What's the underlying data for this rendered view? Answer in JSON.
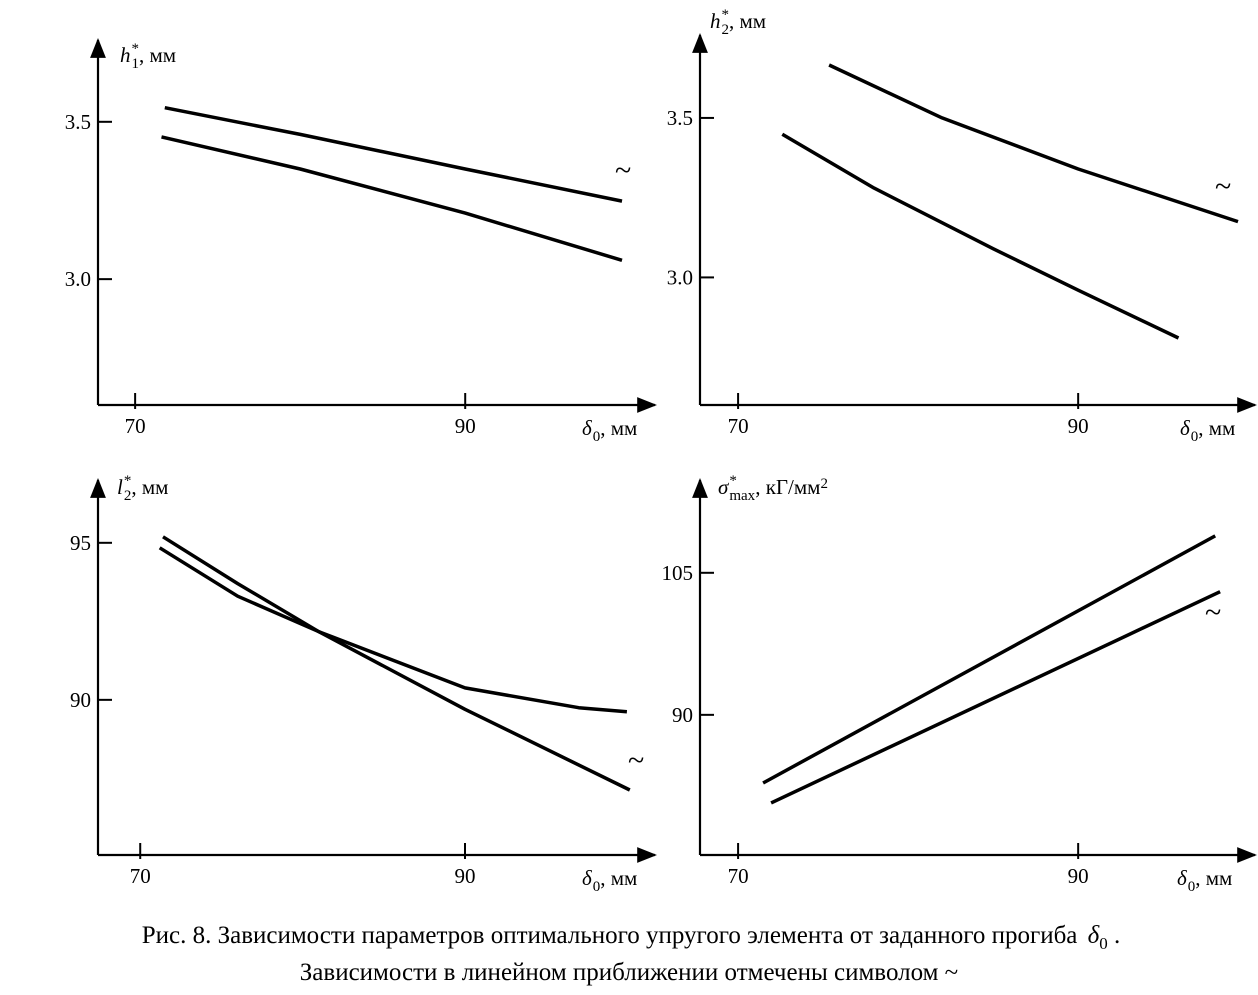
{
  "chart_data": [
    {
      "type": "line",
      "y_label": {
        "symbol": "h",
        "sup": "*",
        "sub": "1",
        "unit": ", мм"
      },
      "x_label": {
        "symbol": "δ",
        "sub": "0",
        "unit": ", мм"
      },
      "xlim": [
        67.75,
        101.5
      ],
      "xticks": [
        70,
        90
      ],
      "ylim": [
        2.6,
        3.76
      ],
      "yticks": [
        3.5,
        {
          "value": 3,
          "label": "3.0"
        }
      ],
      "annotation": "~",
      "series": [
        {
          "color": "#000000",
          "x": [
            71.8,
            80,
            90,
            99.5
          ],
          "values": [
            3.545,
            3.46,
            3.35,
            3.248
          ]
        },
        {
          "color": "#000000",
          "x": [
            71.6,
            80,
            90,
            99.5
          ],
          "values": [
            3.452,
            3.35,
            3.21,
            3.06
          ]
        }
      ]
    },
    {
      "type": "line",
      "y_label": {
        "symbol": "h",
        "sup": "*",
        "sub": "2",
        "unit": ", мм"
      },
      "x_label": {
        "symbol": "δ",
        "sub": "0",
        "unit": ", мм"
      },
      "xlim": [
        67.76,
        100.4
      ],
      "xticks": [
        70,
        90
      ],
      "ylim": [
        2.6,
        3.76
      ],
      "yticks": [
        3.5,
        {
          "value": 3,
          "label": "3.0"
        }
      ],
      "annotation": "~",
      "series": [
        {
          "color": "#000000",
          "x": [
            75.35,
            82,
            90,
            99.4
          ],
          "values": [
            3.666,
            3.5,
            3.34,
            3.175
          ]
        },
        {
          "color": "#000000",
          "x": [
            72.6,
            78,
            85,
            90,
            95.9
          ],
          "values": [
            3.449,
            3.28,
            3.09,
            2.96,
            2.81
          ]
        }
      ]
    },
    {
      "type": "line",
      "y_label": {
        "symbol": "l",
        "sup": "*",
        "sub": "2",
        "unit": ", мм"
      },
      "x_label": {
        "symbol": "δ",
        "sub": "0",
        "unit": ", мм"
      },
      "xlim": [
        67.4,
        101.7
      ],
      "xticks": [
        70,
        90
      ],
      "ylim": [
        85.06,
        97
      ],
      "yticks": [
        95,
        90
      ],
      "annotation": "~",
      "series": [
        {
          "color": "#000000",
          "x": [
            71.4,
            76,
            81,
            90,
            100.15
          ],
          "values": [
            95.19,
            93.7,
            92.17,
            89.7,
            87.13
          ]
        },
        {
          "color": "#000000",
          "x": [
            71.2,
            76,
            81,
            90,
            97,
            99.97
          ],
          "values": [
            94.84,
            93.3,
            92.17,
            90.38,
            89.75,
            89.62
          ]
        }
      ]
    },
    {
      "type": "line",
      "y_label": {
        "symbol": "σ",
        "sup": "*",
        "sub": "max",
        "unit": ", кГ/мм",
        "unit_sup": "2"
      },
      "x_label": {
        "symbol": "δ",
        "sub": "0",
        "unit": ", мм"
      },
      "xlim": [
        67.76,
        100.4
      ],
      "xticks": [
        70,
        90
      ],
      "ylim": [
        75.2,
        114.8
      ],
      "yticks": [
        105,
        90
      ],
      "annotation": "~",
      "series": [
        {
          "color": "#000000",
          "x": [
            71.47,
            98.06
          ],
          "values": [
            82.8,
            108.9
          ]
        },
        {
          "color": "#000000",
          "x": [
            71.94,
            98.35
          ],
          "values": [
            80.7,
            103
          ]
        }
      ]
    }
  ],
  "caption": {
    "line1": "Рис. 8. Зависимости параметров оптимального упругого элемента от заданного прогиба ",
    "symbol": "δ",
    "sub": "0",
    "end": " .",
    "line2": "Зависимости в линейном приближении отмечены символом ~"
  }
}
